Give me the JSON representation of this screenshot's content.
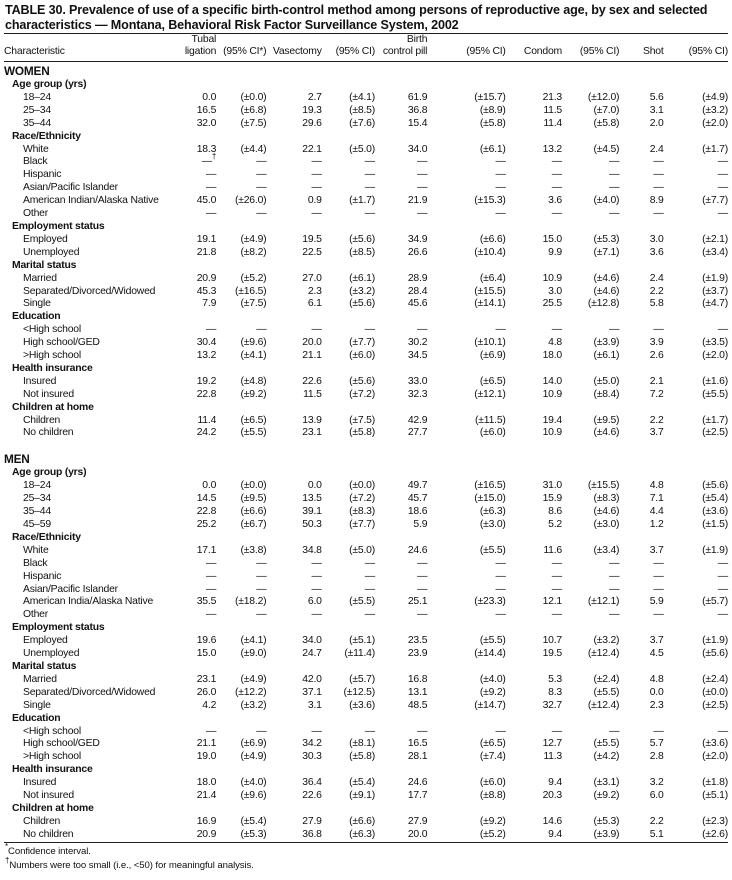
{
  "title": "TABLE 30. Prevalence of use of a specific birth-control method among persons of reproductive age, by sex and selected characteristics — Montana, Behavioral Risk Factor Surveillance System, 2002",
  "columns": [
    "Characteristic",
    "Tubal ligation",
    "(95% CI*)",
    "Vasectomy",
    "(95% CI)",
    "Birth control pill",
    "(95% CI)",
    "Condom",
    "(95% CI)",
    "Shot",
    "(95% CI)"
  ],
  "sections": [
    {
      "label": "WOMEN",
      "groups": [
        {
          "label": "Age group (yrs)",
          "rows": [
            {
              "label": "18–24",
              "values": [
                "0.0",
                "(±0.0)",
                "2.7",
                "(±4.1)",
                "61.9",
                "(±15.7)",
                "21.3",
                "(±12.0)",
                "5.6",
                "(±4.9)"
              ]
            },
            {
              "label": "25–34",
              "values": [
                "16.5",
                "(±6.8)",
                "19.3",
                "(±8.5)",
                "36.8",
                "(±8.9)",
                "11.5",
                "(±7.0)",
                "3.1",
                "(±3.2)"
              ]
            },
            {
              "label": "35–44",
              "values": [
                "32.0",
                "(±7.5)",
                "29.6",
                "(±7.6)",
                "15.4",
                "(±5.8)",
                "11.4",
                "(±5.8)",
                "2.0",
                "(±2.0)"
              ]
            }
          ]
        },
        {
          "label": "Race/Ethnicity",
          "rows": [
            {
              "label": "White",
              "values": [
                "18.3",
                "(±4.4)",
                "22.1",
                "(±5.0)",
                "34.0",
                "(±6.1)",
                "13.2",
                "(±4.5)",
                "2.4",
                "(±1.7)"
              ]
            },
            {
              "label": "Black",
              "values": [
                "—",
                "—",
                "—",
                "—",
                "—",
                "—",
                "—",
                "—",
                "—",
                "—"
              ],
              "footnote_mark": "†"
            },
            {
              "label": "Hispanic",
              "values": [
                "—",
                "—",
                "—",
                "—",
                "—",
                "—",
                "—",
                "—",
                "—",
                "—"
              ]
            },
            {
              "label": "Asian/Pacific Islander",
              "values": [
                "—",
                "—",
                "—",
                "—",
                "—",
                "—",
                "—",
                "—",
                "—",
                "—"
              ]
            },
            {
              "label": "American Indian/Alaska Native",
              "values": [
                "45.0",
                "(±26.0)",
                "0.9",
                "(±1.7)",
                "21.9",
                "(±15.3)",
                "3.6",
                "(±4.0)",
                "8.9",
                "(±7.7)"
              ]
            },
            {
              "label": "Other",
              "values": [
                "—",
                "—",
                "—",
                "—",
                "—",
                "—",
                "—",
                "—",
                "—",
                "—"
              ]
            }
          ]
        },
        {
          "label": "Employment status",
          "rows": [
            {
              "label": "Employed",
              "values": [
                "19.1",
                "(±4.9)",
                "19.5",
                "(±5.6)",
                "34.9",
                "(±6.6)",
                "15.0",
                "(±5.3)",
                "3.0",
                "(±2.1)"
              ]
            },
            {
              "label": "Unemployed",
              "values": [
                "21.8",
                "(±8.2)",
                "22.5",
                "(±8.5)",
                "26.6",
                "(±10.4)",
                "9.9",
                "(±7.1)",
                "3.6",
                "(±3.4)"
              ]
            }
          ]
        },
        {
          "label": "Marital status",
          "rows": [
            {
              "label": "Married",
              "values": [
                "20.9",
                "(±5.2)",
                "27.0",
                "(±6.1)",
                "28.9",
                "(±6.4)",
                "10.9",
                "(±4.6)",
                "2.4",
                "(±1.9)"
              ]
            },
            {
              "label": "Separated/Divorced/Widowed",
              "values": [
                "45.3",
                "(±16.5)",
                "2.3",
                "(±3.2)",
                "28.4",
                "(±15.5)",
                "3.0",
                "(±4.6)",
                "2.2",
                "(±3.7)"
              ]
            },
            {
              "label": "Single",
              "values": [
                "7.9",
                "(±7.5)",
                "6.1",
                "(±5.6)",
                "45.6",
                "(±14.1)",
                "25.5",
                "(±12.8)",
                "5.8",
                "(±4.7)"
              ]
            }
          ]
        },
        {
          "label": "Education",
          "rows": [
            {
              "label": "<High school",
              "values": [
                "—",
                "—",
                "—",
                "—",
                "—",
                "—",
                "—",
                "—",
                "—",
                "—"
              ]
            },
            {
              "label": "High school/GED",
              "values": [
                "30.4",
                "(±9.6)",
                "20.0",
                "(±7.7)",
                "30.2",
                "(±10.1)",
                "4.8",
                "(±3.9)",
                "3.9",
                "(±3.5)"
              ]
            },
            {
              "label": ">High school",
              "values": [
                "13.2",
                "(±4.1)",
                "21.1",
                "(±6.0)",
                "34.5",
                "(±6.9)",
                "18.0",
                "(±6.1)",
                "2.6",
                "(±2.0)"
              ]
            }
          ]
        },
        {
          "label": "Health insurance",
          "rows": [
            {
              "label": "Insured",
              "values": [
                "19.2",
                "(±4.8)",
                "22.6",
                "(±5.6)",
                "33.0",
                "(±6.5)",
                "14.0",
                "(±5.0)",
                "2.1",
                "(±1.6)"
              ]
            },
            {
              "label": "Not insured",
              "values": [
                "22.8",
                "(±9.2)",
                "11.5",
                "(±7.2)",
                "32.3",
                "(±12.1)",
                "10.9",
                "(±8.4)",
                "7.2",
                "(±5.5)"
              ]
            }
          ]
        },
        {
          "label": "Children at home",
          "rows": [
            {
              "label": "Children",
              "values": [
                "11.4",
                "(±6.5)",
                "13.9",
                "(±7.5)",
                "42.9",
                "(±11.5)",
                "19.4",
                "(±9.5)",
                "2.2",
                "(±1.7)"
              ]
            },
            {
              "label": "No children",
              "values": [
                "24.2",
                "(±5.5)",
                "23.1",
                "(±5.8)",
                "27.7",
                "(±6.0)",
                "10.9",
                "(±4.6)",
                "3.7",
                "(±2.5)"
              ]
            }
          ]
        }
      ]
    },
    {
      "label": "MEN",
      "groups": [
        {
          "label": "Age group (yrs)",
          "rows": [
            {
              "label": "18–24",
              "values": [
                "0.0",
                "(±0.0)",
                "0.0",
                "(±0.0)",
                "49.7",
                "(±16.5)",
                "31.0",
                "(±15.5)",
                "4.8",
                "(±5.6)"
              ]
            },
            {
              "label": "25–34",
              "values": [
                "14.5",
                "(±9.5)",
                "13.5",
                "(±7.2)",
                "45.7",
                "(±15.0)",
                "15.9",
                "(±8.3)",
                "7.1",
                "(±5.4)"
              ]
            },
            {
              "label": "35–44",
              "values": [
                "22.8",
                "(±6.6)",
                "39.1",
                "(±8.3)",
                "18.6",
                "(±6.3)",
                "8.6",
                "(±4.6)",
                "4.4",
                "(±3.6)"
              ]
            },
            {
              "label": "45–59",
              "values": [
                "25.2",
                "(±6.7)",
                "50.3",
                "(±7.7)",
                "5.9",
                "(±3.0)",
                "5.2",
                "(±3.0)",
                "1.2",
                "(±1.5)"
              ]
            }
          ]
        },
        {
          "label": "Race/Ethnicity",
          "rows": [
            {
              "label": "White",
              "values": [
                "17.1",
                "(±3.8)",
                "34.8",
                "(±5.0)",
                "24.6",
                "(±5.5)",
                "11.6",
                "(±3.4)",
                "3.7",
                "(±1.9)"
              ]
            },
            {
              "label": "Black",
              "values": [
                "—",
                "—",
                "—",
                "—",
                "—",
                "—",
                "—",
                "—",
                "—",
                "—"
              ]
            },
            {
              "label": "Hispanic",
              "values": [
                "—",
                "—",
                "—",
                "—",
                "—",
                "—",
                "—",
                "—",
                "—",
                "—"
              ]
            },
            {
              "label": "Asian/Pacific Islander",
              "values": [
                "—",
                "—",
                "—",
                "—",
                "—",
                "—",
                "—",
                "—",
                "—",
                "—"
              ]
            },
            {
              "label": "American India/Alaska Native",
              "values": [
                "35.5",
                "(±18.2)",
                "6.0",
                "(±5.5)",
                "25.1",
                "(±23.3)",
                "12.1",
                "(±12.1)",
                "5.9",
                "(±5.7)"
              ]
            },
            {
              "label": "Other",
              "values": [
                "—",
                "—",
                "—",
                "—",
                "—",
                "—",
                "—",
                "—",
                "—",
                "—"
              ]
            }
          ]
        },
        {
          "label": "Employment status",
          "rows": [
            {
              "label": "Employed",
              "values": [
                "19.6",
                "(±4.1)",
                "34.0",
                "(±5.1)",
                "23.5",
                "(±5.5)",
                "10.7",
                "(±3.2)",
                "3.7",
                "(±1.9)"
              ]
            },
            {
              "label": "Unemployed",
              "values": [
                "15.0",
                "(±9.0)",
                "24.7",
                "(±11.4)",
                "23.9",
                "(±14.4)",
                "19.5",
                "(±12.4)",
                "4.5",
                "(±5.6)"
              ]
            }
          ]
        },
        {
          "label": "Marital status",
          "rows": [
            {
              "label": "Married",
              "values": [
                "23.1",
                "(±4.9)",
                "42.0",
                "(±5.7)",
                "16.8",
                "(±4.0)",
                "5.3",
                "(±2.4)",
                "4.8",
                "(±2.4)"
              ]
            },
            {
              "label": "Separated/Divorced/Widowed",
              "values": [
                "26.0",
                "(±12.2)",
                "37.1",
                "(±12.5)",
                "13.1",
                "(±9.2)",
                "8.3",
                "(±5.5)",
                "0.0",
                "(±0.0)"
              ]
            },
            {
              "label": "Single",
              "values": [
                "4.2",
                "(±3.2)",
                "3.1",
                "(±3.6)",
                "48.5",
                "(±14.7)",
                "32.7",
                "(±12.4)",
                "2.3",
                "(±2.5)"
              ]
            }
          ]
        },
        {
          "label": "Education",
          "rows": [
            {
              "label": "<High school",
              "values": [
                "—",
                "—",
                "—",
                "—",
                "—",
                "—",
                "—",
                "—",
                "—",
                "—"
              ]
            },
            {
              "label": "High school/GED",
              "values": [
                "21.1",
                "(±6.9)",
                "34.2",
                "(±8.1)",
                "16.5",
                "(±6.5)",
                "12.7",
                "(±5.5)",
                "5.7",
                "(±3.6)"
              ]
            },
            {
              "label": ">High school",
              "values": [
                "19.0",
                "(±4.9)",
                "30.3",
                "(±5.8)",
                "28.1",
                "(±7.4)",
                "11.3",
                "(±4.2)",
                "2.8",
                "(±2.0)"
              ]
            }
          ]
        },
        {
          "label": "Health insurance",
          "rows": [
            {
              "label": "Insured",
              "values": [
                "18.0",
                "(±4.0)",
                "36.4",
                "(±5.4)",
                "24.6",
                "(±6.0)",
                "9.4",
                "(±3.1)",
                "3.2",
                "(±1.8)"
              ]
            },
            {
              "label": "Not insured",
              "values": [
                "21.4",
                "(±9.6)",
                "22.6",
                "(±9.1)",
                "17.7",
                "(±8.8)",
                "20.3",
                "(±9.2)",
                "6.0",
                "(±5.1)"
              ]
            }
          ]
        },
        {
          "label": "Children at home",
          "rows": [
            {
              "label": "Children",
              "values": [
                "16.9",
                "(±5.4)",
                "27.9",
                "(±6.6)",
                "27.9",
                "(±9.2)",
                "14.6",
                "(±5.3)",
                "2.2",
                "(±2.3)"
              ]
            },
            {
              "label": "No children",
              "values": [
                "20.9",
                "(±5.3)",
                "36.8",
                "(±6.3)",
                "20.0",
                "(±5.2)",
                "9.4",
                "(±3.9)",
                "5.1",
                "(±2.6)"
              ]
            }
          ]
        }
      ]
    }
  ],
  "footnotes": [
    {
      "mark": "*",
      "text": "Confidence interval."
    },
    {
      "mark": "†",
      "text": "Numbers were too small (i.e., <50) for meaningful analysis."
    }
  ]
}
